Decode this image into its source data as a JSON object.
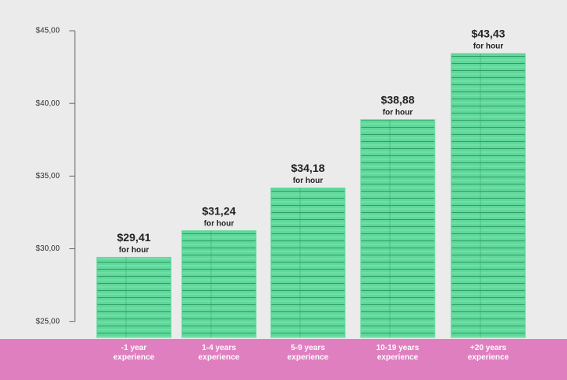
{
  "chart_data": {
    "type": "bar",
    "categories": [
      "-1 year experience",
      "1-4 years experience",
      "5-9 years experience",
      "10-19 years experience",
      "+20 years experience"
    ],
    "values": [
      29.41,
      31.24,
      34.18,
      38.88,
      43.43
    ],
    "value_labels": [
      "$29,41",
      "$31,24",
      "$34,18",
      "$38,88",
      "$43,43"
    ],
    "annotation": "for hour",
    "color": "#5fd89b",
    "ylim": [
      23.9,
      45
    ],
    "yticks": [
      {
        "value": 25,
        "label": "$25,00"
      },
      {
        "value": 30,
        "label": "$30,00"
      },
      {
        "value": 35,
        "label": "$35,00"
      },
      {
        "value": 40,
        "label": "$40,00"
      },
      {
        "value": 45,
        "label": "$45,00"
      }
    ]
  }
}
